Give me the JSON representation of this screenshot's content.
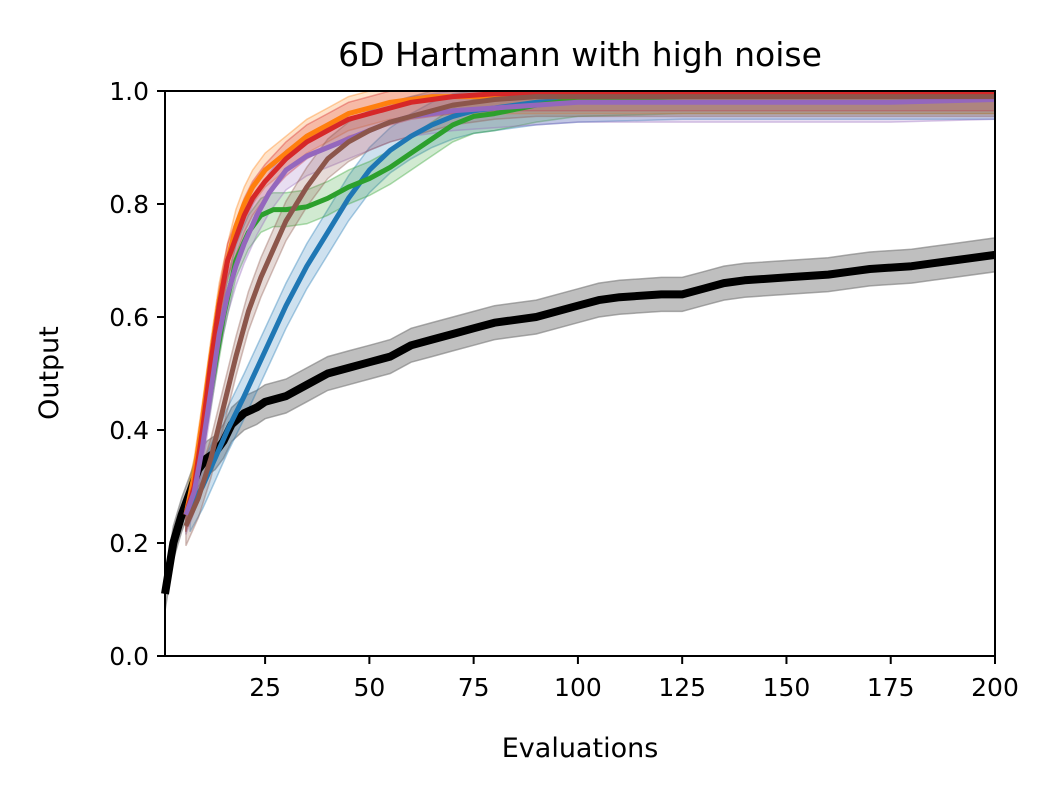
{
  "chart_data": {
    "type": "line",
    "title": "6D Hartmann with high noise",
    "xlabel": "Evaluations",
    "ylabel": "Output",
    "xlim": [
      1,
      200
    ],
    "ylim": [
      0,
      1
    ],
    "xticks": [
      25,
      50,
      75,
      100,
      125,
      150,
      175,
      200
    ],
    "xtick_labels": [
      "25",
      "50",
      "75",
      "100",
      "125",
      "150",
      "175",
      "200"
    ],
    "yticks": [
      0,
      0.2,
      0.4,
      0.6,
      0.8,
      1.0
    ],
    "ytick_labels": [
      "0.0",
      "0.2",
      "0.4",
      "0.6",
      "0.8",
      "1.0"
    ],
    "grid": false,
    "legend": "none",
    "series": [
      {
        "name": "black",
        "color": "#000000",
        "band_color": "#7f7f7f",
        "band_opacity": 0.5,
        "line_width": 8,
        "x": [
          1,
          3,
          5,
          7,
          9,
          11,
          13,
          15,
          17,
          20,
          23,
          25,
          30,
          35,
          40,
          45,
          50,
          55,
          60,
          65,
          70,
          75,
          80,
          90,
          100,
          105,
          110,
          120,
          125,
          130,
          135,
          140,
          150,
          160,
          165,
          170,
          180,
          185,
          190,
          200
        ],
        "y": [
          0.11,
          0.2,
          0.25,
          0.29,
          0.33,
          0.35,
          0.36,
          0.38,
          0.41,
          0.43,
          0.44,
          0.45,
          0.46,
          0.48,
          0.5,
          0.51,
          0.52,
          0.53,
          0.55,
          0.56,
          0.57,
          0.58,
          0.59,
          0.6,
          0.62,
          0.63,
          0.635,
          0.64,
          0.64,
          0.65,
          0.66,
          0.665,
          0.67,
          0.675,
          0.68,
          0.685,
          0.69,
          0.695,
          0.7,
          0.71
        ],
        "band": 0.03
      },
      {
        "name": "blue",
        "color": "#1f77b4",
        "line_width": 5,
        "x": [
          7,
          10,
          13,
          16,
          20,
          25,
          30,
          35,
          40,
          45,
          50,
          55,
          60,
          65,
          70,
          75,
          80,
          90,
          100,
          125,
          150,
          175,
          200
        ],
        "y": [
          0.26,
          0.3,
          0.35,
          0.4,
          0.46,
          0.54,
          0.62,
          0.69,
          0.75,
          0.81,
          0.86,
          0.895,
          0.92,
          0.94,
          0.955,
          0.965,
          0.97,
          0.98,
          0.985,
          0.99,
          0.99,
          0.99,
          0.99
        ],
        "band": 0.04
      },
      {
        "name": "green",
        "color": "#2ca02c",
        "line_width": 5,
        "x": [
          6,
          9,
          12,
          15,
          18,
          21,
          24,
          27,
          30,
          35,
          40,
          45,
          50,
          55,
          60,
          65,
          70,
          75,
          80,
          90,
          100,
          125,
          150,
          175,
          200
        ],
        "y": [
          0.25,
          0.35,
          0.47,
          0.6,
          0.7,
          0.75,
          0.78,
          0.79,
          0.79,
          0.795,
          0.81,
          0.83,
          0.845,
          0.865,
          0.89,
          0.915,
          0.94,
          0.955,
          0.96,
          0.975,
          0.985,
          0.99,
          0.99,
          0.99,
          0.99
        ],
        "band": 0.03
      },
      {
        "name": "orange",
        "color": "#ff7f0e",
        "line_width": 5,
        "x": [
          6,
          8,
          10,
          12,
          14,
          16,
          18,
          20,
          22,
          25,
          30,
          35,
          40,
          45,
          50,
          55,
          60,
          65,
          75,
          90,
          100,
          125,
          150,
          175,
          200
        ],
        "y": [
          0.25,
          0.32,
          0.42,
          0.53,
          0.63,
          0.7,
          0.76,
          0.8,
          0.83,
          0.86,
          0.89,
          0.92,
          0.94,
          0.96,
          0.97,
          0.98,
          0.985,
          0.99,
          0.99,
          0.99,
          0.99,
          0.99,
          0.99,
          0.99,
          0.99
        ],
        "band": 0.03
      },
      {
        "name": "red",
        "color": "#d62728",
        "line_width": 5,
        "x": [
          6,
          8,
          10,
          12,
          14,
          16,
          18,
          20,
          22,
          25,
          30,
          35,
          40,
          45,
          50,
          55,
          60,
          65,
          70,
          80,
          100,
          125,
          150,
          175,
          200
        ],
        "y": [
          0.25,
          0.3,
          0.4,
          0.52,
          0.62,
          0.7,
          0.74,
          0.78,
          0.81,
          0.84,
          0.88,
          0.91,
          0.93,
          0.95,
          0.96,
          0.97,
          0.98,
          0.985,
          0.99,
          0.995,
          0.995,
          0.995,
          0.995,
          0.995,
          0.995
        ],
        "band": 0.03
      },
      {
        "name": "purple",
        "color": "#9467bd",
        "line_width": 5,
        "x": [
          6,
          8,
          10,
          12,
          14,
          16,
          18,
          20,
          23,
          26,
          30,
          35,
          40,
          45,
          50,
          55,
          60,
          70,
          80,
          90,
          100,
          125,
          150,
          175,
          200
        ],
        "y": [
          0.25,
          0.29,
          0.37,
          0.47,
          0.57,
          0.64,
          0.69,
          0.73,
          0.78,
          0.82,
          0.86,
          0.885,
          0.9,
          0.915,
          0.93,
          0.945,
          0.955,
          0.965,
          0.97,
          0.975,
          0.98,
          0.98,
          0.98,
          0.98,
          0.985
        ],
        "band": 0.035
      },
      {
        "name": "brown",
        "color": "#8c564b",
        "line_width": 5,
        "x": [
          6,
          9,
          12,
          15,
          18,
          21,
          24,
          27,
          30,
          35,
          40,
          45,
          50,
          55,
          60,
          65,
          70,
          75,
          80,
          90,
          100,
          125,
          150,
          175,
          200
        ],
        "y": [
          0.23,
          0.28,
          0.35,
          0.44,
          0.53,
          0.61,
          0.67,
          0.72,
          0.77,
          0.83,
          0.88,
          0.91,
          0.93,
          0.945,
          0.955,
          0.965,
          0.975,
          0.98,
          0.985,
          0.99,
          0.99,
          0.99,
          0.99,
          0.99,
          0.99
        ],
        "band": 0.035
      }
    ]
  }
}
